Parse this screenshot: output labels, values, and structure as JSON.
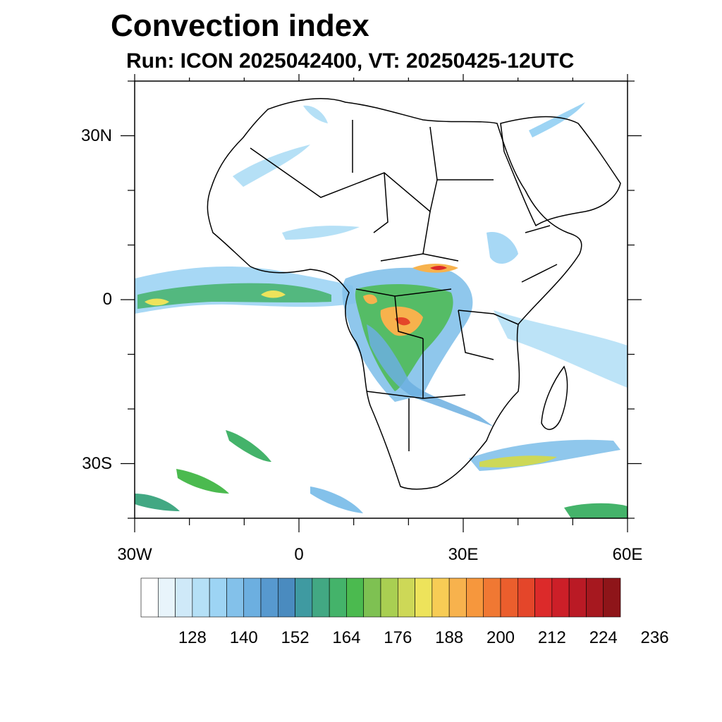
{
  "title": "Convection index",
  "subtitle": "Run: ICON 2025042400,  VT: 20250425-12UTC",
  "axes": {
    "lat_labels": [
      {
        "text": "30N",
        "lat": 30
      },
      {
        "text": "0",
        "lat": 0
      },
      {
        "text": "30S",
        "lat": -30
      }
    ],
    "lon_labels": [
      {
        "text": "30W",
        "lon": -30
      },
      {
        "text": "0",
        "lon": 0
      },
      {
        "text": "30E",
        "lon": 30
      },
      {
        "text": "60E",
        "lon": 60
      }
    ],
    "lon_range": [
      -30,
      60
    ],
    "lat_range": [
      -40,
      40
    ]
  },
  "colorbar": {
    "colors": [
      "#ffffff",
      "#e8f4fb",
      "#cfe9f8",
      "#b5e0f6",
      "#9dd4f4",
      "#83c1ea",
      "#6cafe0",
      "#5799cf",
      "#4a8bbf",
      "#3f9aa1",
      "#42a883",
      "#44b36a",
      "#4bba4f",
      "#7ec152",
      "#a9cf52",
      "#cdd857",
      "#ede35b",
      "#f7cc55",
      "#f7b24d",
      "#f6973d",
      "#f07833",
      "#eb5e2d",
      "#e4462a",
      "#dc2a2a",
      "#cc1f28",
      "#ba1a25",
      "#a6181f",
      "#8e1519"
    ],
    "tick_labels": [
      "128",
      "140",
      "152",
      "164",
      "176",
      "188",
      "200",
      "212",
      "224",
      "236"
    ]
  },
  "colors": {
    "land_outline": "#000000",
    "ocean": "#ffffff"
  }
}
